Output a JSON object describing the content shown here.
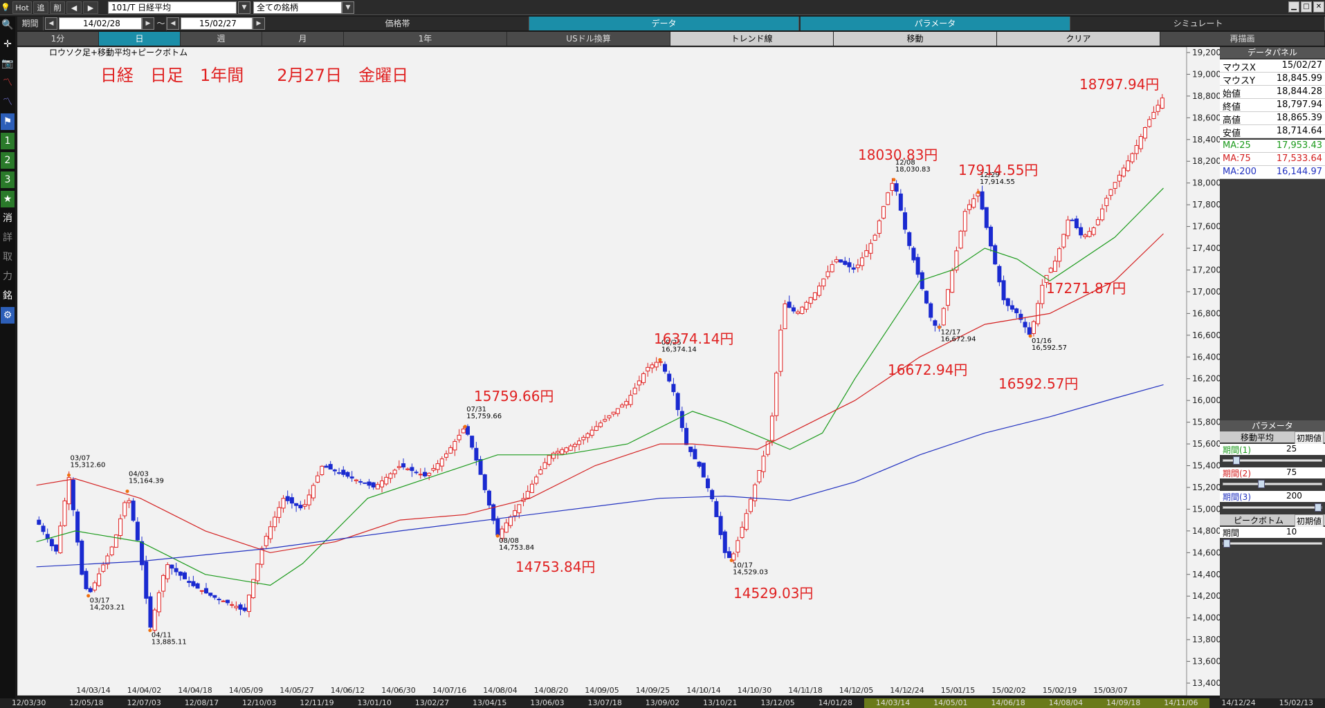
{
  "topbar": {
    "hot": "Hot",
    "tsui": "追",
    "sakujo": "削",
    "symbol": "101/T 日経平均",
    "universe": "全ての銘柄"
  },
  "row2": {
    "period_label": "期間",
    "from": "14/02/28",
    "tilde": "～",
    "to": "15/02/27",
    "price_band": "価格帯",
    "data": "データ",
    "params": "パラメータ",
    "simulate": "シミュレート"
  },
  "row3": {
    "tabs": [
      "1分",
      "日",
      "週",
      "月",
      "1年",
      "USドル換算",
      "トレンド線",
      "移動",
      "クリア",
      "再描画"
    ]
  },
  "chart_data": {
    "type": "candlestick",
    "legend_text": "ロウソク足+移動平均+ピークボトム",
    "title": "日経　日足　1年間　　2月27日　金曜日",
    "ylim": [
      13400,
      19200
    ],
    "yticks": [
      "19,200",
      "19,000",
      "18,800",
      "18,600",
      "18,400",
      "18,200",
      "18,000",
      "17,800",
      "17,600",
      "17,400",
      "17,200",
      "17,000",
      "16,800",
      "16,600",
      "16,400",
      "16,200",
      "16,000",
      "15,800",
      "15,600",
      "15,400",
      "15,200",
      "15,000",
      "14,800",
      "14,600",
      "14,400",
      "14,200",
      "14,000",
      "13,800",
      "13,600",
      "13,400"
    ],
    "xticks": [
      "14/03/14",
      "14/04/02",
      "14/04/18",
      "14/05/09",
      "14/05/27",
      "14/06/12",
      "14/06/30",
      "14/07/16",
      "14/08/04",
      "14/08/20",
      "14/09/05",
      "14/09/25",
      "14/10/14",
      "14/10/30",
      "14/11/18",
      "14/12/05",
      "14/12/24",
      "15/01/15",
      "15/02/02",
      "15/02/19",
      "15/03/07"
    ],
    "peaks": [
      {
        "date": "03/07",
        "value": "15,312.60",
        "v": 15312.6
      },
      {
        "date": "03/17",
        "value": "14,203.21",
        "v": 14203.21
      },
      {
        "date": "04/03",
        "value": "15,164.39",
        "v": 15164.39
      },
      {
        "date": "04/11",
        "value": "13,885.11",
        "v": 13885.11
      },
      {
        "date": "07/31",
        "value": "15,759.66",
        "v": 15759.66
      },
      {
        "date": "08/08",
        "value": "14,753.84",
        "v": 14753.84
      },
      {
        "date": "09/25",
        "value": "16,374.14",
        "v": 16374.14
      },
      {
        "date": "10/17",
        "value": "14,529.03",
        "v": 14529.03
      },
      {
        "date": "12/08",
        "value": "18,030.83",
        "v": 18030.83
      },
      {
        "date": "12/17",
        "value": "16,672.94",
        "v": 16672.94
      },
      {
        "date": "12/29",
        "value": "17,914.55",
        "v": 17914.55
      },
      {
        "date": "01/16",
        "value": "16,592.57",
        "v": 16592.57
      }
    ],
    "annotations": [
      "15759.66円",
      "14753.84円",
      "16374.14円",
      "14529.03円",
      "18030.83円",
      "16672.94円",
      "17914.55円",
      "16592.57円",
      "17271.87円",
      "18797.94円"
    ],
    "series": [
      {
        "name": "MA:25",
        "color": "#1a9a1a"
      },
      {
        "name": "MA:75",
        "color": "#d42020"
      },
      {
        "name": "MA:200",
        "color": "#2030c0"
      }
    ],
    "colors": {
      "up": "#e02020",
      "down": "#1a2ad0"
    }
  },
  "datapanel": {
    "title": "データパネル",
    "rows": [
      {
        "label": "マウスX",
        "value": "15/02/27"
      },
      {
        "label": "マウスY",
        "value": "18,845.99"
      },
      {
        "label": "始値",
        "value": "18,844.28"
      },
      {
        "label": "終値",
        "value": "18,797.94"
      },
      {
        "label": "高値",
        "value": "18,865.39"
      },
      {
        "label": "安値",
        "value": "18,714.64"
      }
    ],
    "ma": [
      {
        "label": "MA:25",
        "value": "17,953.43"
      },
      {
        "label": "MA:75",
        "value": "17,533.64"
      },
      {
        "label": "MA:200",
        "value": "16,144.97"
      }
    ]
  },
  "params": {
    "title": "パラメータ",
    "ma_title": "移動平均",
    "init": "初期値",
    "p1": "期間(1)",
    "v1": "25",
    "p2": "期間(2)",
    "v2": "75",
    "p3": "期間(3)",
    "v3": "200",
    "pb_title": "ピークボトム",
    "pb_label": "期間",
    "pb_val": "10"
  },
  "bottom_dates": [
    "12/03/30",
    "12/05/18",
    "12/07/03",
    "12/08/17",
    "12/10/03",
    "12/11/19",
    "13/01/10",
    "13/02/27",
    "13/04/15",
    "13/06/03",
    "13/07/18",
    "13/09/02",
    "13/10/21",
    "13/12/05",
    "14/01/28",
    "14/03/14",
    "14/05/01",
    "14/06/18",
    "14/08/04",
    "14/09/18",
    "14/11/06",
    "14/12/24",
    "15/02/13"
  ],
  "left_tools": [
    "消",
    "詳",
    "取",
    "力",
    "銘"
  ]
}
